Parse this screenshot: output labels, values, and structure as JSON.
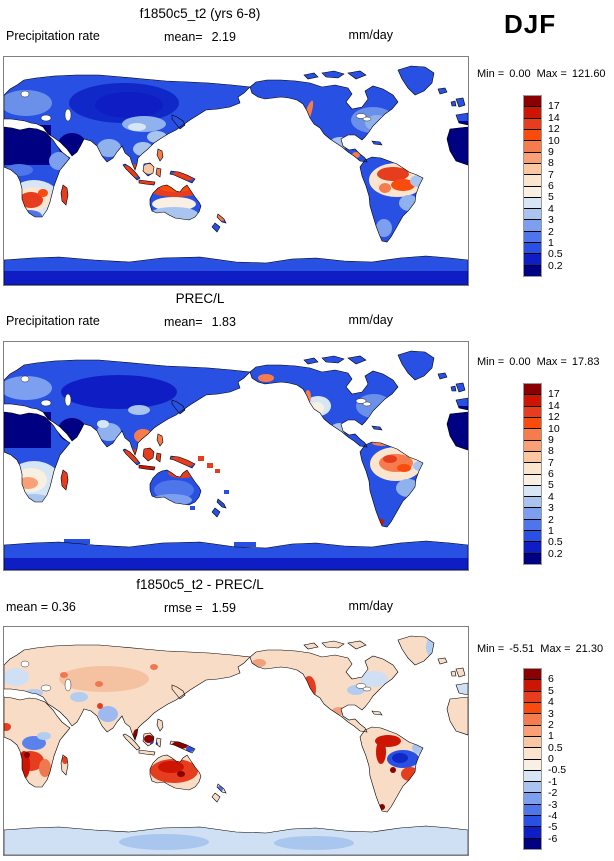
{
  "season_label": "DJF",
  "palette_note": {
    "land_model_base": "#2850e2",
    "diff_base": "#f8dcc6",
    "frame_border": "#7f7f7f"
  },
  "panels": [
    {
      "title": "f1850c5_t2 (yrs 6-8)",
      "field_label": "Precipitation rate",
      "stats": [
        {
          "label": "mean=",
          "value": "2.19"
        }
      ],
      "units": "mm/day",
      "range": {
        "min_label": "Min =",
        "min": "0.00",
        "max_label": "Max =",
        "max": "121.60"
      },
      "colorbar": {
        "labels": [
          "17",
          "14",
          "12",
          "10",
          "9",
          "8",
          "7",
          "6",
          "5",
          "4",
          "3",
          "2",
          "1",
          "0.5",
          "0.2"
        ],
        "colors": [
          "#8b0000",
          "#cc1503",
          "#e63d1f",
          "#fa4b0f",
          "#f67c4d",
          "#f9a077",
          "#fbc7a2",
          "#fce5cf",
          "#f7f0e3",
          "#d7e6f5",
          "#aac4f0",
          "#7d9ff0",
          "#4f75ea",
          "#2850e2",
          "#0f1ec4",
          "#000082"
        ]
      }
    },
    {
      "title": "PREC/L",
      "field_label": "Precipitation rate",
      "stats": [
        {
          "label": "mean=",
          "value": "1.83"
        }
      ],
      "units": "mm/day",
      "range": {
        "min_label": "Min =",
        "min": "0.00",
        "max_label": "Max =",
        "max": "17.83"
      },
      "colorbar": {
        "labels": [
          "17",
          "14",
          "12",
          "10",
          "9",
          "8",
          "7",
          "6",
          "5",
          "4",
          "3",
          "2",
          "1",
          "0.5",
          "0.2"
        ],
        "colors": [
          "#8b0000",
          "#cc1503",
          "#e63d1f",
          "#fa4b0f",
          "#f67c4d",
          "#f9a077",
          "#fbc7a2",
          "#fce5cf",
          "#f7f0e3",
          "#d7e6f5",
          "#aac4f0",
          "#7d9ff0",
          "#4f75ea",
          "#2850e2",
          "#0f1ec4",
          "#000082"
        ]
      }
    },
    {
      "title": "f1850c5_t2 - PREC/L",
      "field_label": "",
      "stats": [
        {
          "label": "mean =",
          "value": "0.36"
        },
        {
          "label": "rmse =",
          "value": "1.59"
        }
      ],
      "units": "mm/day",
      "range": {
        "min_label": "Min =",
        "min": "-5.51",
        "max_label": "Max =",
        "max": "21.30"
      },
      "colorbar": {
        "labels": [
          "6",
          "5",
          "4",
          "3",
          "2",
          "1",
          "0.5",
          "0",
          "-0.5",
          "-1",
          "-2",
          "-3",
          "-4",
          "-5",
          "-6"
        ],
        "colors": [
          "#8b0000",
          "#cc1503",
          "#e63d1f",
          "#fa4b0f",
          "#f67c4d",
          "#f9a077",
          "#fbc7a2",
          "#fce5cf",
          "#f7f0e3",
          "#d7e6f5",
          "#aac4f0",
          "#7d9ff0",
          "#4f75ea",
          "#2850e2",
          "#0f1ec4",
          "#000082"
        ]
      }
    }
  ],
  "chart_data": [
    {
      "type": "heatmap",
      "title": "f1850c5_t2 (yrs 6-8)",
      "variable": "Precipitation rate",
      "season": "DJF",
      "units": "mm/day",
      "mean": 2.19,
      "min": 0.0,
      "max": 121.6,
      "levels": [
        0.2,
        0.5,
        1,
        2,
        3,
        4,
        5,
        6,
        7,
        8,
        9,
        10,
        12,
        14,
        17
      ],
      "legend_position": "right",
      "notes": "Global land-only precipitation map, equirectangular, longitude 0-360E, oceans white; high values (red) over southern Africa, Madagascar, Maritime Continent, northern Australia, Amazon; low values (blue) over high latitudes and deserts"
    },
    {
      "type": "heatmap",
      "title": "PREC/L",
      "variable": "Precipitation rate",
      "season": "DJF",
      "units": "mm/day",
      "mean": 1.83,
      "min": 0.0,
      "max": 17.83,
      "levels": [
        0.2,
        0.5,
        1,
        2,
        3,
        4,
        5,
        6,
        7,
        8,
        9,
        10,
        12,
        14,
        17
      ],
      "legend_position": "right",
      "notes": "Observed land precipitation (coarse grid), same color levels as model panel"
    },
    {
      "type": "heatmap",
      "title": "f1850c5_t2 - PREC/L",
      "season": "DJF",
      "units": "mm/day",
      "mean": 0.36,
      "rmse": 1.59,
      "min": -5.51,
      "max": 21.3,
      "levels": [
        -6,
        -5,
        -4,
        -3,
        -2,
        -1,
        -0.5,
        0,
        0.5,
        1,
        2,
        3,
        4,
        5,
        6
      ],
      "legend_position": "right",
      "notes": "Model-minus-observation difference map; positive bias (red) over Australia, Amazon flanks, southern Africa, western North America; negative bias (blue) over central Amazon, Congo, Antarctica"
    }
  ]
}
